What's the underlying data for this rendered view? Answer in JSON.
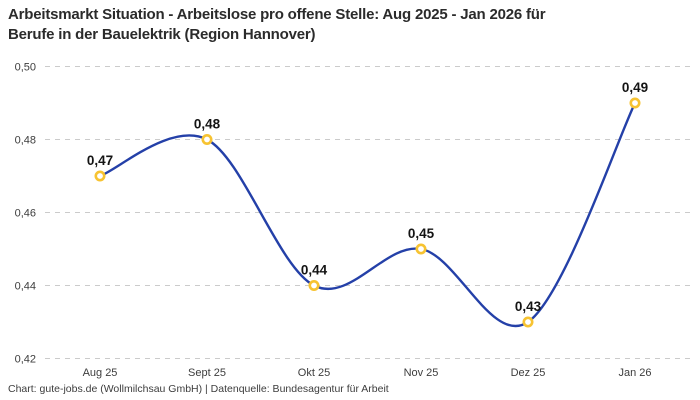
{
  "header": {
    "title_line1": "Arbeitsmarkt Situation - Arbeitslose pro offene Stelle: Aug 2025 - Jan 2026 für",
    "title_line2": "Berufe in der Bauelektrik (Region Hannover)"
  },
  "footer": {
    "attribution": "Chart: gute-jobs.de (Wollmilchsau GmbH) | Datenquelle: Bundesagentur für Arbeit"
  },
  "chart_data": {
    "type": "line",
    "title": "Arbeitsmarkt Situation - Arbeitslose pro offene Stelle: Aug 2025 - Jan 2026 für Berufe in der Bauelektrik (Region Hannover)",
    "categories": [
      "Aug 25",
      "Sept 25",
      "Okt 25",
      "Nov 25",
      "Dez 25",
      "Jan 26"
    ],
    "values": [
      0.47,
      0.48,
      0.44,
      0.45,
      0.43,
      0.49
    ],
    "point_labels": [
      "0,47",
      "0,48",
      "0,44",
      "0,45",
      "0,43",
      "0,49"
    ],
    "y_ticks": [
      0.5,
      0.48,
      0.46,
      0.44,
      0.42
    ],
    "y_tick_labels": [
      "0,50",
      "0,48",
      "0,46",
      "0,44",
      "0,42"
    ],
    "ylim": [
      0.42,
      0.5
    ],
    "xlabel": "",
    "ylabel": "",
    "legend": "none",
    "grid": "horizontal-dashed",
    "line_style": "smooth-spline",
    "colors": {
      "line": "#2440a8",
      "marker_ring": "#f7c331",
      "marker_fill": "#ffffff",
      "grid": "#cbcbcb",
      "title_text": "#2b2b2b",
      "tick_text": "#3d3d3d",
      "point_label_text": "#141414",
      "background": "#ffffff"
    }
  }
}
